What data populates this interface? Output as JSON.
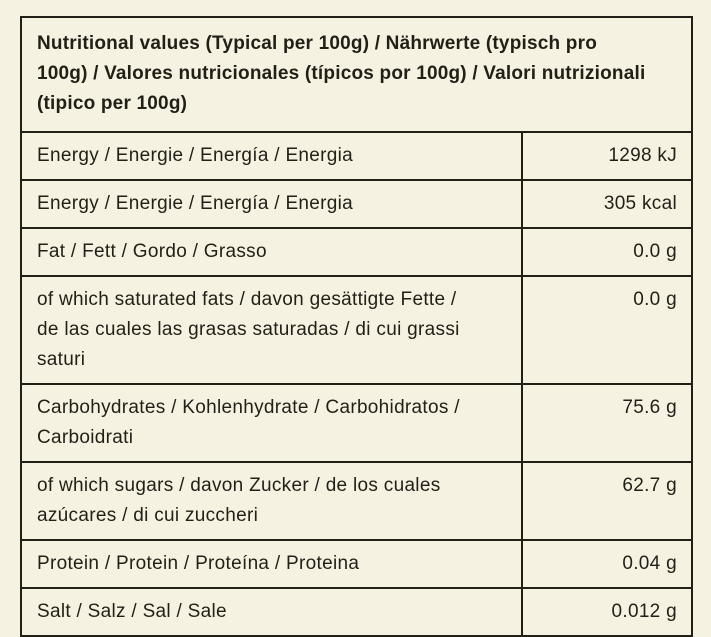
{
  "page": {
    "background_color": "#f6f2e1"
  },
  "table": {
    "border_color": "#221f17",
    "text_color": "#221f17",
    "title": "Nutritional values (Typical per 100g) / Nährwerte (typisch pro 100g) / Valores nutricionales (típicos por 100g) / Valori nutrizionali (tipico per 100g)",
    "columns": [
      "nutrient",
      "amount_per_100g"
    ],
    "rows": [
      {
        "label": "Energy / Energie / Energía / Energia",
        "value": "1298 kJ"
      },
      {
        "label": "Energy / Energie / Energía / Energia",
        "value": "305 kcal"
      },
      {
        "label": "Fat / Fett / Gordo / Grasso",
        "value": "0.0 g"
      },
      {
        "label": "of which saturated fats / davon gesättigte Fette / de las cuales las grasas saturadas / di cui grassi saturi",
        "value": "0.0 g"
      },
      {
        "label": "Carbohydrates / Kohlenhydrate / Carbohidratos / Carboidrati",
        "value": "75.6 g"
      },
      {
        "label": "of which sugars / davon Zucker / de los cuales azúcares / di cui zuccheri",
        "value": "62.7 g"
      },
      {
        "label": "Protein / Protein / Proteína / Proteina",
        "value": "0.04 g"
      },
      {
        "label": "Salt / Salz / Sal / Sale",
        "value": "0.012 g"
      }
    ]
  }
}
